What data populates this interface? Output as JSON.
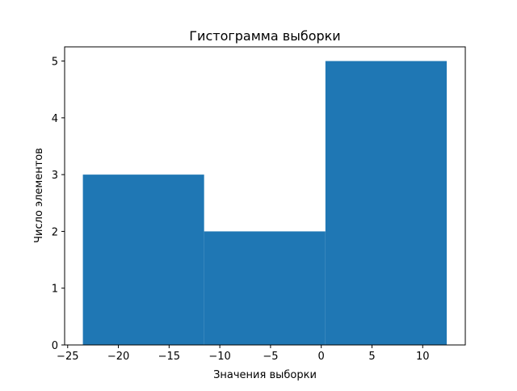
{
  "chart_data": {
    "type": "bar",
    "subtype": "histogram",
    "title": "Гистограмма выборки",
    "xlabel": "Значения выборки",
    "ylabel": "Число элементов",
    "bin_edges": [
      -23.5,
      -11.55,
      0.41,
      12.37
    ],
    "counts": [
      3,
      2,
      5
    ],
    "xlim": [
      -25.3,
      14.2
    ],
    "ylim": [
      0,
      5.25
    ],
    "xticks": [
      -25,
      -20,
      -15,
      -10,
      -5,
      0,
      5,
      10
    ],
    "xtick_labels": [
      "−25",
      "−20",
      "−15",
      "−10",
      "−5",
      "0",
      "5",
      "10"
    ],
    "yticks": [
      0,
      1,
      2,
      3,
      4,
      5
    ],
    "ytick_labels": [
      "0",
      "1",
      "2",
      "3",
      "4",
      "5"
    ],
    "grid": false,
    "color": "#1f77b4"
  }
}
